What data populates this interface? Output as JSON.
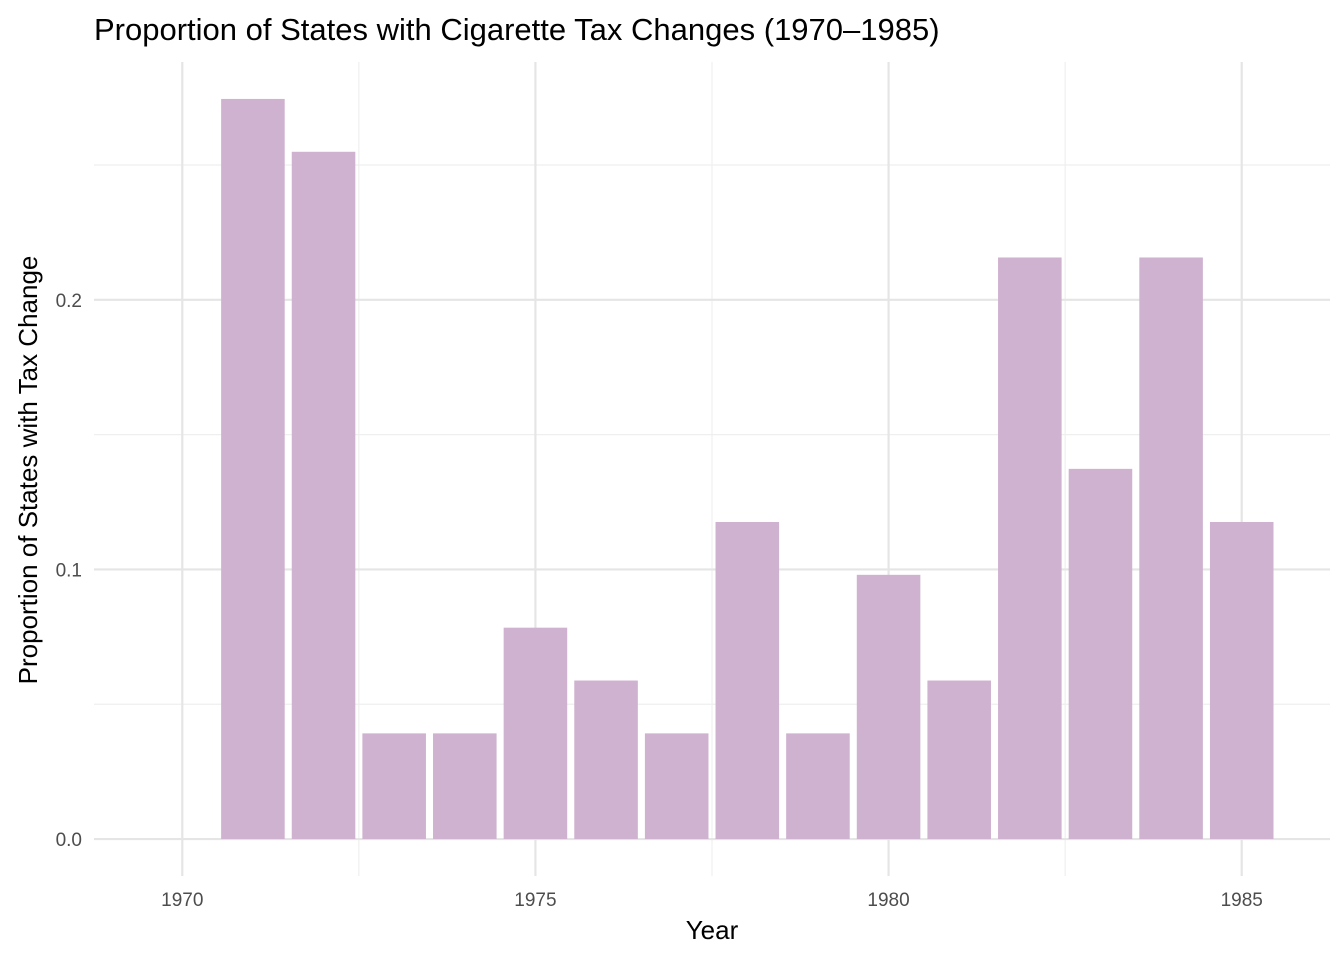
{
  "chart_data": {
    "type": "bar",
    "title": "Proportion of States with Cigarette Tax Changes (1970–1985)",
    "xlabel": "Year",
    "ylabel": "Proportion of States with Tax Change",
    "x": [
      1971,
      1972,
      1973,
      1974,
      1975,
      1976,
      1977,
      1978,
      1979,
      1980,
      1981,
      1982,
      1983,
      1984,
      1985
    ],
    "values": [
      0.2745,
      0.2549,
      0.0392,
      0.0392,
      0.0784,
      0.0588,
      0.0392,
      0.1176,
      0.0392,
      0.098,
      0.0588,
      0.2157,
      0.1373,
      0.2157,
      0.1176
    ],
    "xlim": [
      1968.75,
      1986.25
    ],
    "ylim": [
      -0.0137,
      0.2882
    ],
    "x_ticks": [
      1970,
      1975,
      1980,
      1985
    ],
    "y_ticks": [
      0.0,
      0.1,
      0.2
    ],
    "x_tick_labels": [
      "1970",
      "1975",
      "1980",
      "1985"
    ],
    "y_tick_labels": [
      "0.0",
      "0.1",
      "0.2"
    ],
    "grid": true,
    "legend": "none",
    "bar_color": "#cfb2d0",
    "bar_width_years": 0.9
  }
}
